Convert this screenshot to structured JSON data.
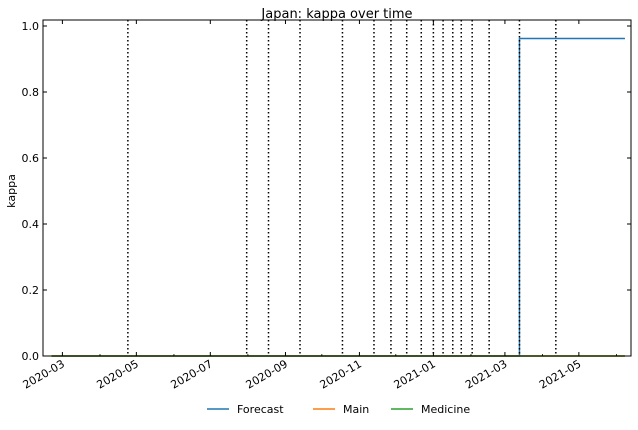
{
  "chart_data": {
    "type": "line",
    "title": "Japan: kappa over time",
    "xlabel": "",
    "ylabel": "kappa",
    "xlim": [
      "2020-02-14",
      "2021-06-13"
    ],
    "ylim": [
      0,
      1.0
    ],
    "y_ticks": [
      0.0,
      0.2,
      0.4,
      0.6,
      0.8,
      1.0
    ],
    "y_tick_labels": [
      "0.0",
      "0.2",
      "0.4",
      "0.6",
      "0.8",
      "1.0"
    ],
    "x_ticks": [
      "2020-03-01",
      "2020-05-01",
      "2020-07-01",
      "2020-09-01",
      "2020-11-01",
      "2021-01-01",
      "2021-03-01",
      "2021-05-01"
    ],
    "x_tick_labels": [
      "2020-03",
      "2020-05",
      "2020-07",
      "2020-09",
      "2020-11",
      "2021-01",
      "2021-03",
      "2021-05"
    ],
    "vertical_lines": [
      "2020-04-24",
      "2020-07-31",
      "2020-08-18",
      "2020-09-13",
      "2020-10-18",
      "2020-11-13",
      "2020-11-27",
      "2020-12-10",
      "2020-12-22",
      "2021-01-01",
      "2021-01-09",
      "2021-01-17",
      "2021-01-24",
      "2021-02-02",
      "2021-02-16",
      "2021-03-13",
      "2021-04-12"
    ],
    "series": [
      {
        "name": "Forecast",
        "color": "#1f77b4",
        "points": [
          {
            "x": "2020-02-21",
            "y": 0.0
          },
          {
            "x": "2021-03-13",
            "y": 0.0
          },
          {
            "x": "2021-03-13",
            "y": 0.962
          },
          {
            "x": "2021-06-08",
            "y": 0.962
          }
        ]
      },
      {
        "name": "Main",
        "color": "#ff7f0e",
        "points": [
          {
            "x": "2020-02-21",
            "y": 0.0
          },
          {
            "x": "2021-06-08",
            "y": 0.0
          }
        ]
      },
      {
        "name": "Medicine",
        "color": "#2ca02c",
        "points": [
          {
            "x": "2020-02-21",
            "y": 0.0
          },
          {
            "x": "2021-06-08",
            "y": 0.0
          }
        ]
      }
    ],
    "legend_position": "bottom-center",
    "grid": false
  }
}
